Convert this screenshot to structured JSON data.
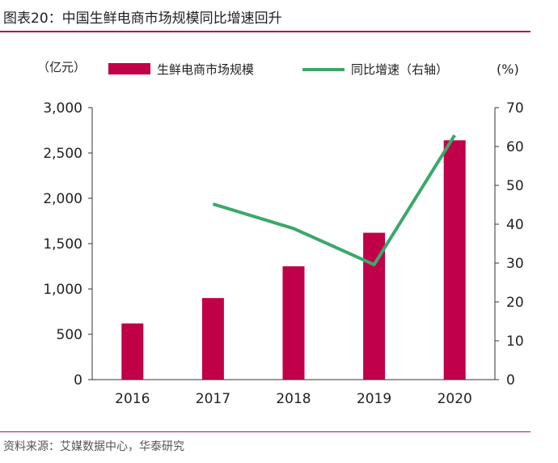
{
  "figure_title": "图表20：中国生鲜电商市场规模同比增速回升",
  "source": "资料来源：艾媒数据中心，华泰研究",
  "colors": {
    "bar": "#c00048",
    "line": "#3aa86a",
    "rule": "#b0124a",
    "axis": "#333333"
  },
  "chart_data": {
    "type": "bar",
    "categories": [
      "2016",
      "2017",
      "2018",
      "2019",
      "2020"
    ],
    "left_unit": "（亿元）",
    "right_unit": "(%)",
    "left_ylim": [
      0,
      3000
    ],
    "right_ylim": [
      0,
      70
    ],
    "left_ticks": [
      "0",
      "500",
      "1,000",
      "1,500",
      "2,000",
      "2,500",
      "3,000"
    ],
    "right_ticks": [
      "0",
      "10",
      "20",
      "30",
      "40",
      "50",
      "60",
      "70"
    ],
    "legend_position": "top",
    "grid": false,
    "series": [
      {
        "name": "生鲜电商市场规模",
        "type": "bar",
        "axis": "left",
        "values": [
          620,
          900,
          1250,
          1620,
          2640
        ]
      },
      {
        "name": "同比增速（右轴）",
        "type": "line",
        "axis": "right",
        "values": [
          null,
          45.2,
          38.9,
          29.6,
          62.9
        ]
      }
    ]
  }
}
